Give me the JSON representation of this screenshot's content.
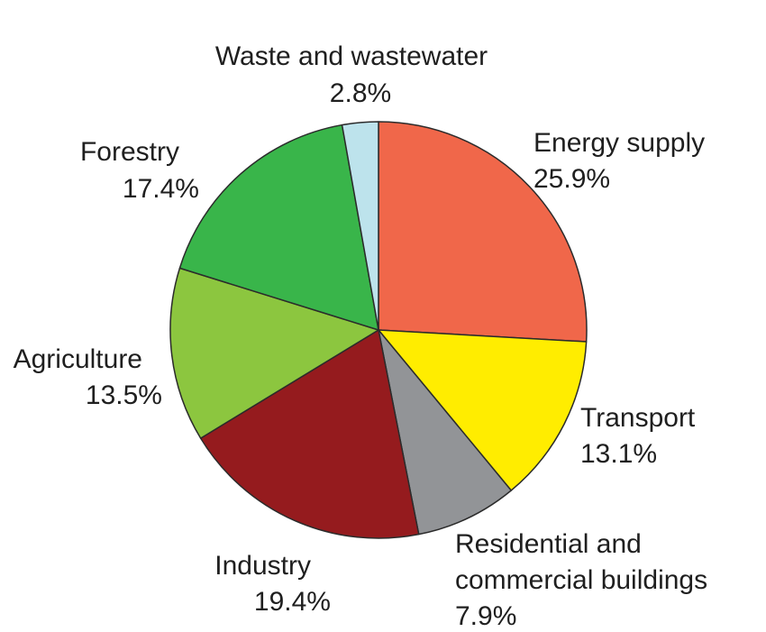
{
  "chart_data": {
    "type": "pie",
    "title": "",
    "slices": [
      {
        "name": "Energy supply",
        "value": 25.9,
        "label": "25.9%",
        "color": "#F0674A"
      },
      {
        "name": "Transport",
        "value": 13.1,
        "label": "13.1%",
        "color": "#FFED00"
      },
      {
        "name": "Residential and commercial buildings",
        "value": 7.9,
        "label": "7.9%",
        "color": "#929497"
      },
      {
        "name": "Industry",
        "value": 19.4,
        "label": "19.4%",
        "color": "#951B1E"
      },
      {
        "name": "Agriculture",
        "value": 13.5,
        "label": "13.5%",
        "color": "#8CC63F"
      },
      {
        "name": "Forestry",
        "value": 17.4,
        "label": "17.4%",
        "color": "#39B54A"
      },
      {
        "name": "Waste and wastewater",
        "value": 2.8,
        "label": "2.8%",
        "color": "#BDE3EC"
      }
    ],
    "start_angle_deg": 0,
    "direction": "clockwise"
  }
}
